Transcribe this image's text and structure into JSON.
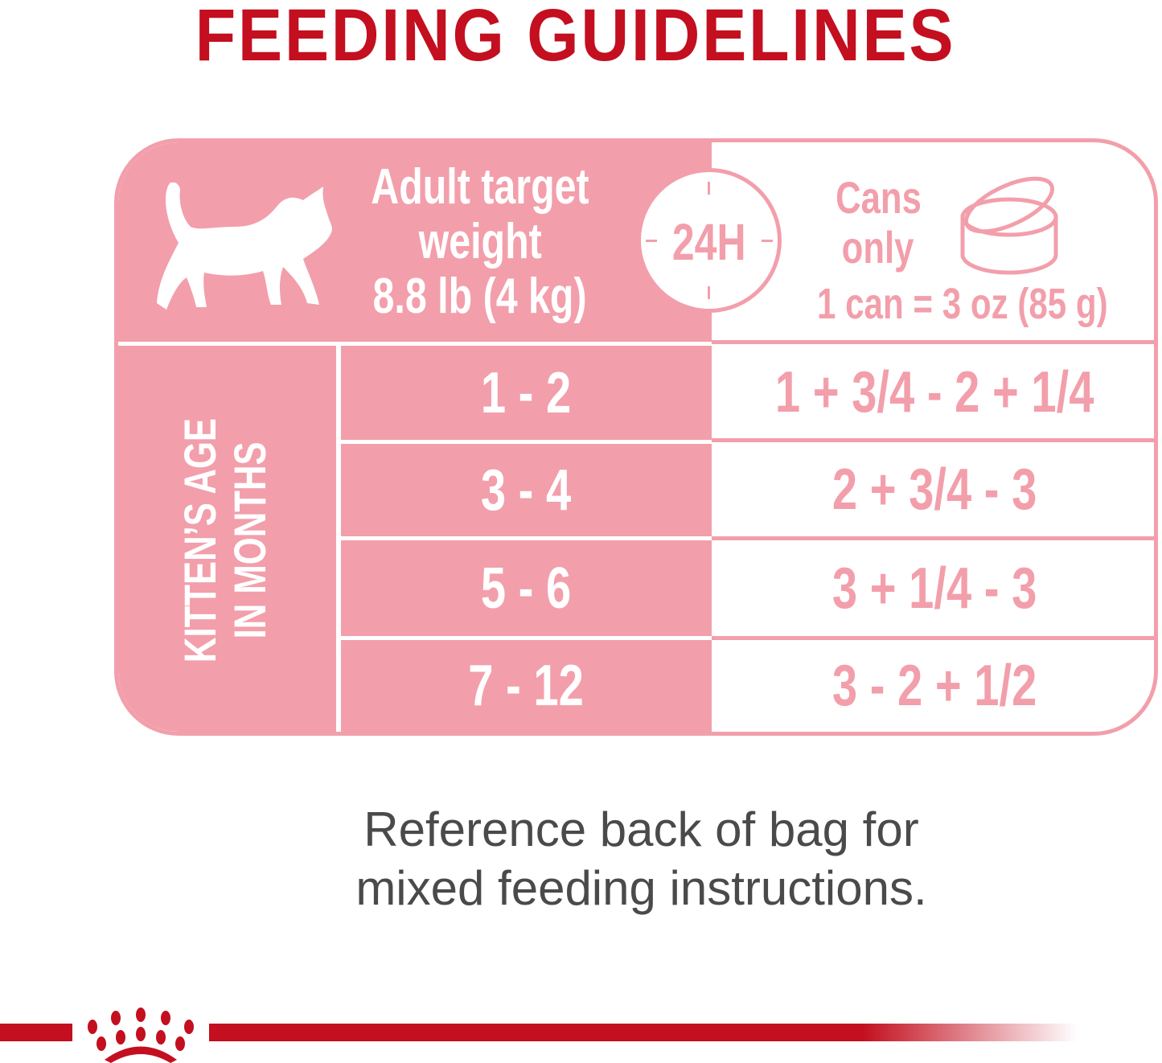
{
  "title": "FEEDING GUIDELINES",
  "header": {
    "target_lines": [
      "Adult target",
      "weight",
      "8.8 lb (4 kg)"
    ],
    "period": "24H",
    "food_lines": [
      "Cans",
      "only"
    ],
    "can_size": "1 can = 3 oz (85 g)",
    "icons": [
      "kitten-silhouette-icon",
      "clock-icon",
      "can-icon"
    ]
  },
  "age_label_lines": [
    "KITTEN’S AGE",
    "IN MONTHS"
  ],
  "rows": [
    {
      "age": "1 - 2",
      "cans": "1 + 3/4 - 2 + 1/4"
    },
    {
      "age": "3 - 4",
      "cans": "2 + 3/4 - 3"
    },
    {
      "age": "5 - 6",
      "cans": "3 + 1/4 - 3"
    },
    {
      "age": "7 - 12",
      "cans": "3 - 2 + 1/2"
    }
  ],
  "note_lines": [
    "Reference back of bag for",
    "mixed feeding instructions."
  ],
  "colors": {
    "brand_red": "#c30f1f",
    "pink": "#f29fab",
    "text_grey": "#4a4a4a"
  },
  "logo": "royal-crown-logo"
}
